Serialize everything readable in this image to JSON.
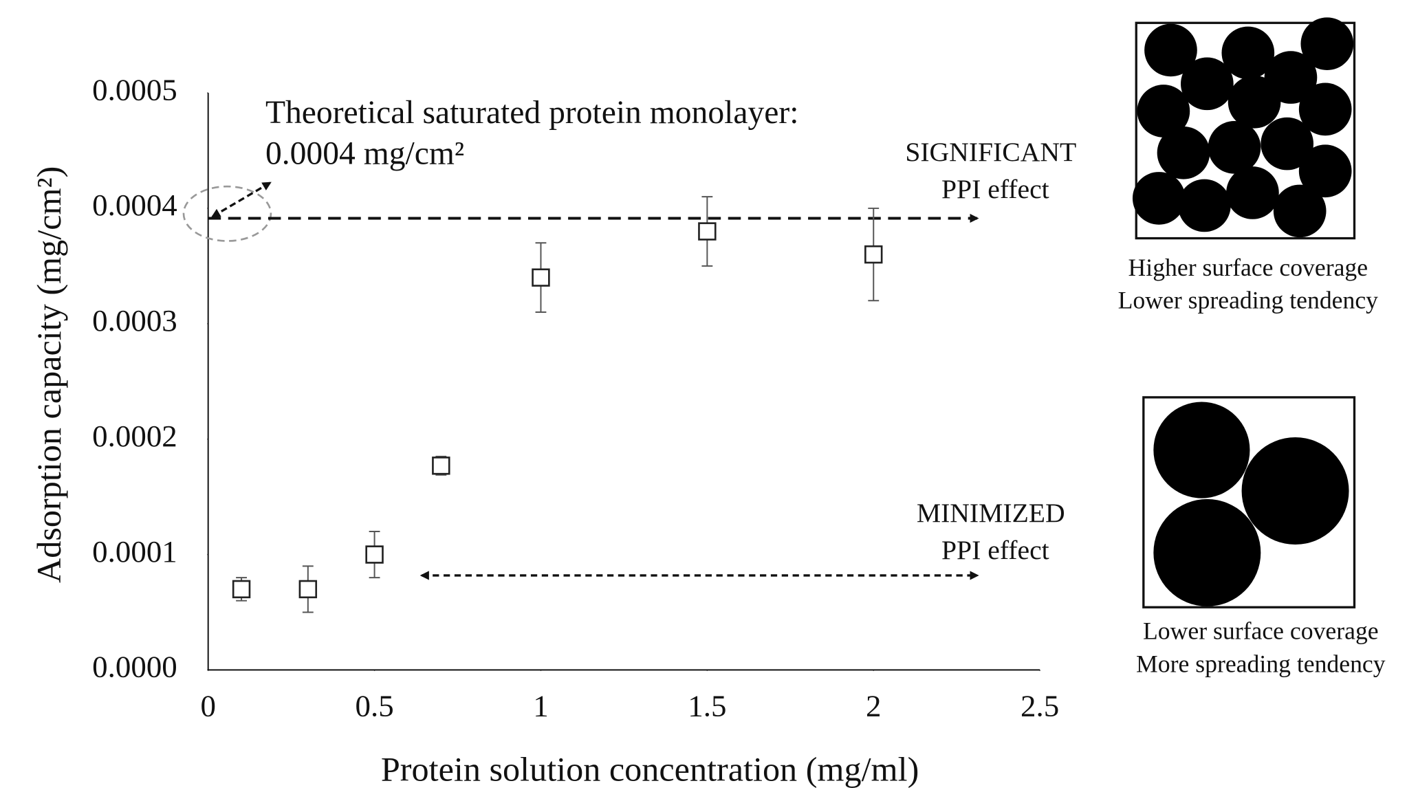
{
  "chart_data": {
    "type": "scatter",
    "x_label": "Protein solution concentration (mg/ml)",
    "y_label": "Adsorption capacity (mg/cm²)",
    "x": [
      0.1,
      0.3,
      0.5,
      0.7,
      1,
      1.5,
      2
    ],
    "series": [
      {
        "color": "#222222",
        "values": [
          7e-05,
          7e-05,
          0.0001,
          0.000177,
          0.00034,
          0.00038,
          0.00036
        ],
        "errors": [
          1e-05,
          2e-05,
          2e-05,
          8e-06,
          3e-05,
          3e-05,
          4e-05
        ]
      }
    ],
    "xlim": [
      0,
      2.5
    ],
    "xticks": [
      0,
      0.5,
      1,
      1.5,
      2,
      2.5
    ],
    "ylim": [
      0,
      0.0005
    ],
    "yticks": [
      {
        "value": 0,
        "label": "0.0000"
      },
      0.0001,
      0.0002,
      0.0003,
      0.0004,
      0.0005
    ],
    "grid": false,
    "annotations": {
      "monolayer_title": "Theoretical saturated protein monolayer:",
      "monolayer_value": "0.0004 mg/cm²",
      "significant": "SIGNIFICANT",
      "significant_effect": "PPI effect",
      "minimized": "MINIMIZED",
      "minimized_effect": "PPI effect"
    },
    "diagrams": {
      "top_line1": "Higher surface coverage",
      "top_line2": "Lower spreading tendency",
      "bottom_line1": "Lower surface coverage",
      "bottom_line2": "More spreading tendency"
    }
  }
}
